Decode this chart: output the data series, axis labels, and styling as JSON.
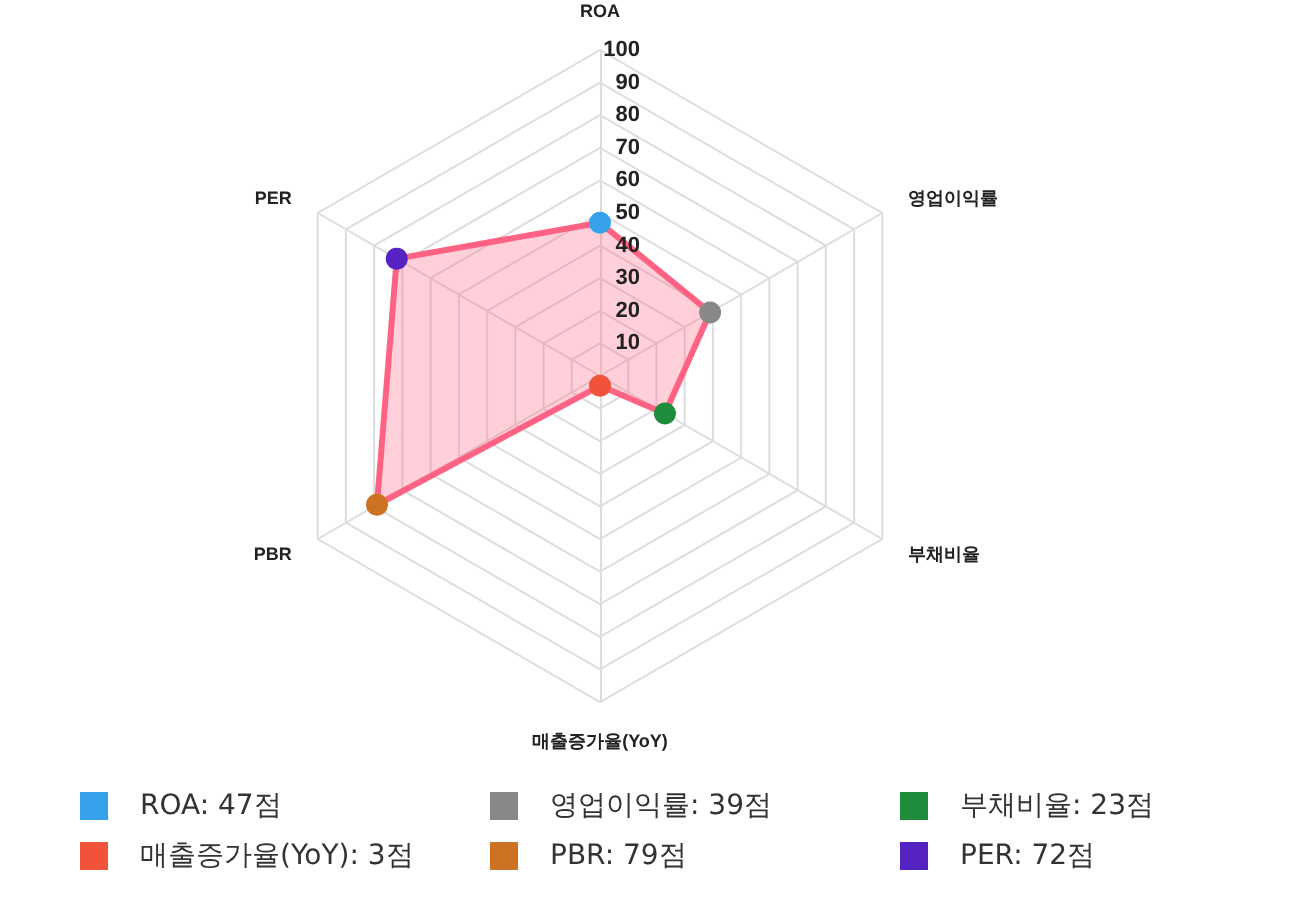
{
  "chart_data": {
    "type": "radar",
    "categories": [
      "ROA",
      "영업이익률",
      "부채비율",
      "매출증가율(YoY)",
      "PBR",
      "PER"
    ],
    "series": [
      {
        "color": "#ff6384",
        "values": [
          47,
          39,
          23,
          3,
          79,
          72
        ],
        "colors": [
          "#36a2eb",
          "#888888",
          "#1e8c3a",
          "#f0523a",
          "#cc7222",
          "#5523c2"
        ]
      }
    ],
    "annotations": [
      "ROA: 47점",
      "영업이익률: 39점",
      "부채비율: 23점",
      "매출증가율(YoY): 3점",
      "PBR: 79점",
      "PER: 72점"
    ],
    "ylim": [
      0,
      100
    ],
    "yticks": [
      10,
      20,
      30,
      40,
      50,
      60,
      70,
      80,
      90,
      100
    ],
    "grid": true,
    "marker": "circle"
  }
}
